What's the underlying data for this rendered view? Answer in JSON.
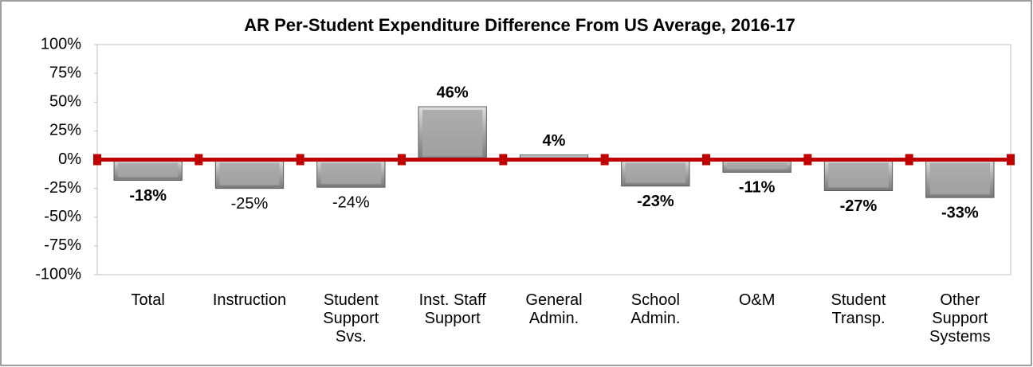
{
  "chart_data": {
    "type": "bar",
    "title": "AR Per-Student Expenditure Difference From US Average, 2016-17",
    "categories": [
      "Total",
      "Instruction",
      "Student Support Svs.",
      "Inst. Staff Support",
      "General Admin.",
      "School Admin.",
      "O&M",
      "Student Transp.",
      "Other Support Systems"
    ],
    "values": [
      -18,
      -25,
      -24,
      46,
      4,
      -23,
      -11,
      -27,
      -33
    ],
    "value_labels": [
      "-18%",
      "-25%",
      "-24%",
      "46%",
      "4%",
      "-23%",
      "-11%",
      "-27%",
      "-33%"
    ],
    "value_labels_bold": [
      true,
      false,
      false,
      true,
      true,
      true,
      true,
      true,
      true
    ],
    "color": "#a6a6a6",
    "zero_line_color": "#c00000",
    "ylim": [
      -100,
      100
    ],
    "yticks": [
      {
        "value": -100,
        "label": "-100%"
      },
      {
        "value": -75,
        "label": "-75%"
      },
      {
        "value": -50,
        "label": "-50%"
      },
      {
        "value": -25,
        "label": "-25%"
      },
      {
        "value": 0,
        "label": "0%"
      },
      {
        "value": 25,
        "label": "25%"
      },
      {
        "value": 50,
        "label": "50%"
      },
      {
        "value": 75,
        "label": "75%"
      },
      {
        "value": 100,
        "label": "100%"
      }
    ],
    "grid": false
  }
}
